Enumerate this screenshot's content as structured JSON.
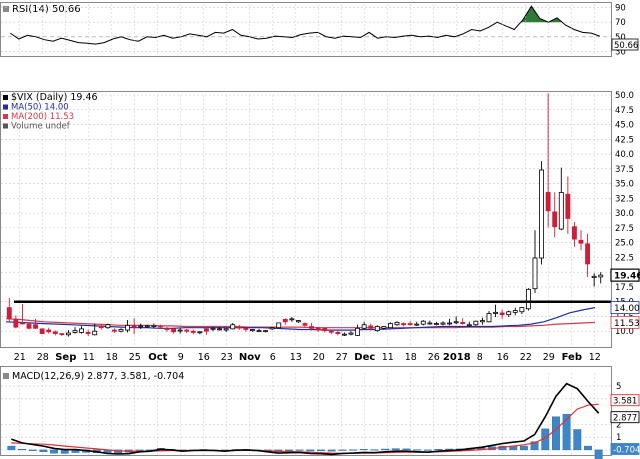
{
  "colors": {
    "up": "#ffffff",
    "down": "#cc1f3a",
    "wick": "#000000",
    "ma50": "#1f2fa3",
    "ma200": "#d13a4a",
    "macd": "#000000",
    "signal": "#e03030",
    "hist": "#3f86c6",
    "rsi_fill": "#2f7a3a",
    "grid": "#c8c8c8"
  },
  "rsi_panel": {
    "label_text": "RSI(14) 50.66",
    "axis": [
      "90",
      "70",
      "50",
      "30"
    ],
    "badge": "50.66"
  },
  "price_panel": {
    "legend": [
      {
        "text": "$VIX (Daily) 19.46",
        "color": "#000000",
        "icon": "candle-icon"
      },
      {
        "text": "MA(50) 14.00",
        "color": "#1f2fa3",
        "icon": "line-icon"
      },
      {
        "text": "MA(200) 11.53",
        "color": "#d13a4a",
        "icon": "line-icon"
      },
      {
        "text": "Volume undef",
        "color": "#555555",
        "icon": "bars-icon"
      }
    ],
    "badges": {
      "price": "19.46",
      "ma50": "14.00",
      "ma200": "11.53"
    }
  },
  "date_axis": [
    {
      "t": "21",
      "bold": false
    },
    {
      "t": "28",
      "bold": false
    },
    {
      "t": "Sep",
      "bold": true
    },
    {
      "t": "11",
      "bold": false
    },
    {
      "t": "18",
      "bold": false
    },
    {
      "t": "25",
      "bold": false
    },
    {
      "t": "Oct",
      "bold": true
    },
    {
      "t": "9",
      "bold": false
    },
    {
      "t": "16",
      "bold": false
    },
    {
      "t": "23",
      "bold": false
    },
    {
      "t": "Nov",
      "bold": true
    },
    {
      "t": "6",
      "bold": false
    },
    {
      "t": "13",
      "bold": false
    },
    {
      "t": "20",
      "bold": false
    },
    {
      "t": "27",
      "bold": false
    },
    {
      "t": "Dec",
      "bold": true
    },
    {
      "t": "11",
      "bold": false
    },
    {
      "t": "18",
      "bold": false
    },
    {
      "t": "26",
      "bold": false
    },
    {
      "t": "2018",
      "bold": true
    },
    {
      "t": "8",
      "bold": false
    },
    {
      "t": "16",
      "bold": false
    },
    {
      "t": "22",
      "bold": false
    },
    {
      "t": "29",
      "bold": false
    },
    {
      "t": "Feb",
      "bold": true
    },
    {
      "t": "12",
      "bold": false
    }
  ],
  "macd_panel": {
    "label_text": "MACD(12,26,9) 2.877, 3.581, -0.704",
    "axis": [
      "5",
      "4",
      "2",
      "1",
      "0"
    ],
    "badges": {
      "signal": "3.581",
      "macd": "2.877",
      "hist": "-0.704"
    }
  },
  "chart_data": [
    {
      "type": "line",
      "title": "RSI(14) 50.66",
      "ylim": [
        25,
        95
      ],
      "yticks": [
        90,
        70,
        50,
        30
      ],
      "values": [
        55,
        47,
        52,
        50,
        46,
        44,
        48,
        45,
        42,
        41,
        40,
        42,
        47,
        50,
        46,
        44,
        50,
        49,
        52,
        48,
        50,
        54,
        52,
        50,
        56,
        55,
        60,
        52,
        50,
        47,
        48,
        51,
        50,
        49,
        53,
        55,
        56,
        50,
        48,
        51,
        50,
        49,
        56,
        48,
        50,
        49,
        51,
        52,
        50,
        51,
        49,
        52,
        50,
        54,
        60,
        58,
        63,
        70,
        65,
        60,
        73,
        92,
        75,
        70,
        76,
        66,
        60,
        56,
        55,
        51
      ]
    },
    {
      "type": "candlestick",
      "title": "$VIX (Daily) 19.46",
      "ylim": [
        7.5,
        50
      ],
      "yticks": [
        50,
        47.5,
        45,
        42.5,
        40,
        37.5,
        35,
        32.5,
        30,
        27.5,
        25,
        22.5,
        20,
        17.5,
        15,
        12.5,
        10
      ],
      "x": [
        "21",
        "28",
        "Sep",
        "11",
        "18",
        "25",
        "Oct",
        "9",
        "16",
        "23",
        "Nov",
        "6",
        "13",
        "20",
        "27",
        "Dec",
        "11",
        "18",
        "26",
        "2018",
        "8",
        "16",
        "22",
        "29",
        "Feb",
        "12"
      ],
      "horizontal_line": 15.0,
      "candles": [
        [
          14.0,
          15.6,
          12.2,
          11.5
        ],
        [
          12.0,
          12.7,
          10.7,
          10.5
        ],
        [
          11.4,
          14.6,
          11.3,
          11.2
        ],
        [
          11.2,
          11.4,
          10.5,
          10.3
        ],
        [
          11.1,
          12.1,
          10.5,
          10.4
        ],
        [
          10.4,
          10.5,
          9.6,
          9.5
        ],
        [
          10.2,
          10.6,
          9.9,
          9.6
        ],
        [
          9.9,
          10.1,
          9.6,
          9.3
        ],
        [
          9.6,
          9.7,
          9.5,
          9.2
        ],
        [
          9.4,
          10.2,
          9.7,
          9.1
        ],
        [
          9.8,
          10.7,
          10.1,
          9.6
        ],
        [
          9.8,
          10.9,
          10.4,
          9.6
        ],
        [
          9.8,
          10.3,
          9.6,
          9.2
        ],
        [
          9.4,
          11.3,
          10.0,
          9.3
        ],
        [
          10.9,
          11.2,
          10.6,
          10.3
        ],
        [
          10.6,
          11.3,
          11.1,
          10.4
        ],
        [
          10.2,
          10.5,
          10.0,
          9.7
        ],
        [
          10.0,
          10.5,
          10.3,
          9.8
        ],
        [
          10.2,
          11.9,
          11.0,
          9.8
        ],
        [
          11.0,
          12.2,
          10.7,
          9.5
        ],
        [
          10.9,
          11.3,
          10.9,
          10.4
        ],
        [
          10.8,
          11.1,
          10.9,
          10.6
        ],
        [
          10.8,
          11.3,
          11.0,
          10.5
        ],
        [
          10.9,
          11.1,
          10.8,
          10.5
        ],
        [
          10.5,
          10.7,
          10.3,
          9.9
        ],
        [
          10.4,
          10.6,
          9.9,
          9.6
        ],
        [
          10.1,
          10.5,
          10.2,
          9.6
        ],
        [
          10.2,
          10.4,
          10.0,
          9.7
        ],
        [
          10.0,
          10.3,
          9.8,
          9.5
        ],
        [
          9.9,
          10.0,
          9.9,
          9.5
        ],
        [
          10.4,
          10.6,
          10.0,
          9.4
        ],
        [
          10.5,
          10.7,
          10.5,
          10.0
        ],
        [
          10.4,
          10.7,
          10.4,
          10.1
        ],
        [
          10.2,
          10.5,
          10.4,
          9.9
        ],
        [
          10.4,
          11.4,
          11.1,
          10.3
        ],
        [
          10.7,
          11.1,
          10.6,
          10.2
        ],
        [
          10.5,
          10.7,
          10.3,
          9.9
        ],
        [
          10.1,
          10.4,
          10.3,
          9.9
        ],
        [
          10.1,
          10.4,
          10.1,
          9.9
        ],
        [
          10.0,
          10.2,
          10.1,
          9.8
        ],
        [
          10.4,
          10.7,
          10.6,
          10.2
        ],
        [
          10.6,
          11.4,
          11.4,
          10.5
        ],
        [
          12.0,
          12.2,
          11.6,
          11.1
        ],
        [
          12.1,
          12.4,
          12.1,
          11.6
        ],
        [
          11.6,
          11.9,
          11.8,
          11.4
        ],
        [
          11.3,
          11.5,
          11.0,
          10.7
        ],
        [
          10.8,
          11.4,
          10.5,
          10.1
        ],
        [
          10.6,
          10.7,
          10.2,
          9.9
        ],
        [
          10.5,
          10.5,
          10.1,
          9.8
        ],
        [
          10.0,
          10.2,
          9.9,
          9.5
        ],
        [
          9.8,
          10.1,
          9.6,
          9.3
        ],
        [
          9.5,
          9.8,
          9.5,
          9.2
        ],
        [
          9.5,
          10.0,
          9.7,
          9.3
        ],
        [
          9.3,
          11.1,
          10.5,
          9.2
        ],
        [
          10.5,
          11.6,
          11.1,
          10.3
        ],
        [
          10.9,
          11.3,
          10.5,
          10.1
        ],
        [
          10.1,
          11.0,
          10.8,
          9.9
        ],
        [
          10.5,
          10.9,
          10.8,
          10.3
        ],
        [
          10.6,
          11.5,
          11.3,
          10.6
        ],
        [
          11.1,
          11.7,
          11.5,
          10.9
        ],
        [
          11.3,
          11.5,
          11.1,
          10.8
        ],
        [
          11.3,
          11.7,
          11.2,
          10.9
        ],
        [
          11.1,
          11.6,
          11.2,
          10.9
        ],
        [
          11.2,
          11.9,
          11.7,
          11.0
        ],
        [
          11.4,
          11.8,
          11.4,
          11.1
        ],
        [
          11.3,
          11.6,
          11.3,
          11.0
        ],
        [
          11.2,
          11.7,
          11.4,
          11.0
        ],
        [
          11.3,
          12.1,
          11.4,
          11.0
        ],
        [
          11.5,
          12.5,
          11.6,
          11.2
        ],
        [
          11.5,
          12.2,
          11.3,
          11.1
        ],
        [
          11.1,
          11.6,
          11.1,
          10.8
        ],
        [
          11.1,
          11.8,
          11.7,
          10.9
        ],
        [
          11.6,
          12.3,
          11.8,
          11.1
        ],
        [
          11.6,
          13.4,
          13.0,
          11.5
        ],
        [
          13.0,
          14.5,
          13.2,
          12.4
        ],
        [
          13.1,
          13.7,
          12.8,
          12.1
        ],
        [
          12.8,
          13.5,
          13.3,
          12.4
        ],
        [
          13.2,
          14.0,
          13.5,
          12.7
        ],
        [
          13.3,
          14.1,
          14.0,
          12.9
        ],
        [
          13.8,
          17.3,
          17.1,
          13.5
        ],
        [
          17.2,
          27.1,
          22.4,
          16.5
        ],
        [
          22.4,
          38.8,
          37.3,
          21.3
        ],
        [
          33.5,
          50.3,
          30.4,
          27.6
        ],
        [
          30.2,
          33.5,
          27.7,
          25.9
        ],
        [
          27.3,
          37.7,
          33.5,
          27.1
        ],
        [
          33.2,
          36.2,
          29.1,
          26.5
        ],
        [
          27.7,
          28.5,
          25.6,
          24.3
        ],
        [
          25.4,
          27.1,
          24.9,
          23.7
        ],
        [
          24.8,
          26.5,
          21.4,
          19.2
        ],
        [
          19.1,
          19.8,
          19.3,
          17.6
        ],
        [
          19.2,
          20.0,
          19.5,
          18.1
        ]
      ],
      "ma50": [
        11.6,
        11.5,
        11.4,
        11.3,
        11.2,
        11.1,
        11.0,
        10.9,
        10.8,
        10.7,
        10.6,
        10.6,
        10.5,
        10.5,
        10.6,
        10.6,
        10.6,
        10.6,
        10.6,
        10.6,
        10.6,
        10.5,
        10.4,
        10.3,
        10.3,
        10.2,
        10.2,
        10.2,
        10.3,
        10.3,
        10.4,
        10.5,
        10.6,
        10.7,
        10.8,
        10.8,
        10.8,
        10.8,
        10.8,
        10.9,
        11.0,
        11.2,
        11.6,
        12.3,
        13.1,
        13.6,
        14.0
      ],
      "ma200": [
        12.1,
        12.0,
        11.8,
        11.6,
        11.5,
        11.4,
        11.3,
        11.2,
        11.1,
        11.0,
        11.0,
        11.0,
        10.9,
        10.9,
        10.8,
        10.8,
        10.8,
        10.8,
        10.8,
        10.7,
        10.7,
        10.7,
        10.7,
        10.7,
        10.6,
        10.6,
        10.6,
        10.6,
        10.6,
        10.6,
        10.6,
        10.6,
        10.6,
        10.6,
        10.6,
        10.6,
        10.7,
        10.7,
        10.7,
        10.8,
        10.8,
        10.9,
        11.0,
        11.2,
        11.3,
        11.4,
        11.5
      ]
    },
    {
      "type": "line",
      "title": "MACD(12,26,9) 2.877, 3.581, -0.704",
      "ylim": [
        -0.4,
        5.4
      ],
      "yticks": [
        5,
        4,
        2,
        1,
        0
      ],
      "macd": [
        0.85,
        0.55,
        0.42,
        0.3,
        0.12,
        0.02,
        0.02,
        -0.05,
        -0.15,
        -0.28,
        -0.32,
        -0.3,
        -0.15,
        -0.1,
        0.05,
        0.0,
        -0.1,
        -0.05,
        -0.02,
        -0.05,
        -0.1,
        -0.02,
        0.0,
        -0.05,
        -0.15,
        -0.25,
        -0.22,
        -0.2,
        -0.28,
        -0.3,
        -0.35,
        -0.28,
        -0.25,
        -0.2,
        -0.22,
        -0.15,
        -0.1,
        -0.1,
        -0.15,
        -0.18,
        -0.1,
        -0.05,
        0.0,
        0.1,
        0.2,
        0.35,
        0.5,
        0.6,
        0.7,
        1.2,
        2.6,
        4.2,
        5.2,
        4.8,
        3.8,
        2.877
      ],
      "signal": [
        0.55,
        0.52,
        0.48,
        0.45,
        0.38,
        0.3,
        0.23,
        0.15,
        0.08,
        0.0,
        -0.07,
        -0.12,
        -0.12,
        -0.1,
        -0.08,
        -0.05,
        -0.05,
        -0.05,
        -0.05,
        -0.05,
        -0.06,
        -0.05,
        -0.04,
        -0.05,
        -0.07,
        -0.1,
        -0.13,
        -0.16,
        -0.19,
        -0.22,
        -0.25,
        -0.26,
        -0.26,
        -0.25,
        -0.24,
        -0.22,
        -0.2,
        -0.18,
        -0.17,
        -0.17,
        -0.15,
        -0.12,
        -0.08,
        -0.04,
        0.02,
        0.1,
        0.2,
        0.3,
        0.4,
        0.55,
        0.95,
        1.6,
        2.4,
        3.2,
        3.5,
        3.581
      ],
      "histogram": [
        0.3,
        0.05,
        -0.06,
        -0.15,
        -0.26,
        -0.28,
        -0.21,
        -0.2,
        -0.23,
        -0.28,
        -0.25,
        -0.18,
        -0.03,
        0.0,
        0.13,
        0.05,
        -0.05,
        0.0,
        0.03,
        0.0,
        -0.04,
        0.03,
        0.04,
        0.0,
        -0.08,
        -0.15,
        -0.09,
        -0.04,
        -0.09,
        -0.08,
        -0.1,
        -0.02,
        0.01,
        0.05,
        0.02,
        0.07,
        0.1,
        0.08,
        0.02,
        -0.01,
        0.05,
        0.07,
        0.08,
        0.14,
        0.18,
        0.25,
        0.3,
        0.3,
        0.3,
        0.65,
        1.65,
        2.6,
        2.8,
        1.6,
        0.3,
        -0.704
      ]
    }
  ]
}
